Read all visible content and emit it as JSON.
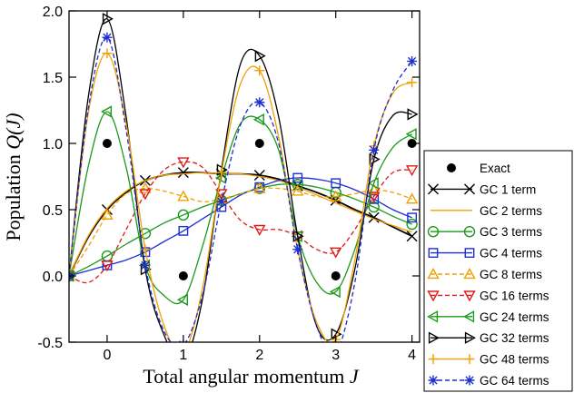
{
  "chart_data": {
    "type": "line",
    "xlabel_main": "Total angular momentum",
    "xlabel_var": "J",
    "ylabel_main": "Population",
    "ylabel_var": "Q(J)",
    "xlim": [
      -0.5,
      4.1
    ],
    "ylim": [
      -0.5,
      2.0
    ],
    "xticks": [
      0,
      1,
      2,
      3,
      4
    ],
    "xtick_labels": [
      "0",
      "1",
      "2",
      "3",
      "4"
    ],
    "yticks": [
      -0.5,
      0.0,
      0.5,
      1.0,
      1.5,
      2.0
    ],
    "ytick_labels": [
      "-0.5",
      "0.0",
      "0.5",
      "1.0",
      "1.5",
      "2.0"
    ],
    "grid": false,
    "legend_position": "lower-right, outside plot",
    "exact": {
      "name": "Exact",
      "color": "#000000",
      "marker": "filled-circle",
      "x": [
        0,
        1,
        2,
        3,
        4
      ],
      "y": [
        1.0,
        0.0,
        1.0,
        0.0,
        1.0
      ]
    },
    "x": [
      -0.5,
      -0.25,
      0.0,
      0.25,
      0.5,
      0.75,
      1.0,
      1.25,
      1.5,
      1.75,
      2.0,
      2.25,
      2.5,
      2.75,
      3.0,
      3.25,
      3.5,
      3.75,
      4.0
    ],
    "series": [
      {
        "name": "GC 1 term",
        "color": "#000000",
        "dash": "solid",
        "marker": "x",
        "y": [
          0.0,
          0.29,
          0.5,
          0.63,
          0.72,
          0.76,
          0.78,
          0.78,
          0.77,
          0.77,
          0.76,
          0.73,
          0.68,
          0.63,
          0.57,
          0.5,
          0.44,
          0.37,
          0.3
        ]
      },
      {
        "name": "GC 2 terms",
        "color": "#f0a000",
        "dash": "solid",
        "marker": "none",
        "y": [
          0.0,
          0.3,
          0.51,
          0.64,
          0.72,
          0.76,
          0.77,
          0.78,
          0.77,
          0.77,
          0.75,
          0.72,
          0.67,
          0.61,
          0.55,
          0.49,
          0.43,
          0.38,
          0.33
        ]
      },
      {
        "name": "GC 3 terms",
        "color": "#1a9a1a",
        "dash": "solid",
        "marker": "open-circle",
        "y": [
          0.0,
          0.07,
          0.15,
          0.24,
          0.32,
          0.4,
          0.46,
          0.52,
          0.57,
          0.62,
          0.66,
          0.69,
          0.69,
          0.67,
          0.63,
          0.58,
          0.52,
          0.45,
          0.39
        ]
      },
      {
        "name": "GC 4 terms",
        "color": "#1c2fd0",
        "dash": "solid",
        "marker": "open-square",
        "y": [
          0.0,
          0.04,
          0.08,
          0.12,
          0.18,
          0.26,
          0.34,
          0.43,
          0.52,
          0.61,
          0.67,
          0.72,
          0.74,
          0.73,
          0.7,
          0.65,
          0.58,
          0.5,
          0.44
        ]
      },
      {
        "name": "GC 8 terms",
        "color": "#f0a000",
        "dash": "dashed",
        "marker": "open-triangle-up",
        "y": [
          0.0,
          0.22,
          0.46,
          0.62,
          0.66,
          0.64,
          0.6,
          0.56,
          0.58,
          0.62,
          0.66,
          0.66,
          0.64,
          0.6,
          0.6,
          0.62,
          0.65,
          0.63,
          0.58
        ]
      },
      {
        "name": "GC 16 terms",
        "color": "#e01818",
        "dash": "dashed",
        "marker": "open-triangle-down",
        "y": [
          0.0,
          -0.05,
          0.08,
          0.35,
          0.62,
          0.8,
          0.86,
          0.82,
          0.62,
          0.42,
          0.35,
          0.35,
          0.3,
          0.2,
          0.18,
          0.35,
          0.6,
          0.78,
          0.8
        ]
      },
      {
        "name": "GC 24 terms",
        "color": "#1a9a1a",
        "dash": "solid",
        "marker": "open-triangle-left",
        "y": [
          0.0,
          0.82,
          1.24,
          0.82,
          0.08,
          -0.15,
          -0.18,
          0.22,
          0.74,
          1.15,
          1.18,
          0.95,
          0.3,
          -0.05,
          -0.12,
          0.2,
          0.7,
          0.97,
          1.07
        ]
      },
      {
        "name": "GC 32 terms",
        "color": "#000000",
        "dash": "solid",
        "marker": "open-triangle-right",
        "y": [
          0.0,
          1.34,
          1.94,
          1.2,
          0.05,
          -0.45,
          -0.65,
          -0.18,
          0.8,
          1.6,
          1.66,
          1.2,
          0.3,
          -0.38,
          -0.44,
          0.05,
          0.88,
          1.21,
          1.22
        ]
      },
      {
        "name": "GC 48 terms",
        "color": "#f0a000",
        "dash": "solid",
        "marker": "plus",
        "y": [
          0.0,
          1.22,
          1.68,
          1.15,
          0.2,
          -0.38,
          -0.58,
          -0.1,
          0.78,
          1.45,
          1.55,
          1.05,
          0.2,
          -0.35,
          -0.48,
          0.12,
          0.98,
          1.38,
          1.46
        ]
      },
      {
        "name": "GC 64 terms",
        "color": "#1c2fd0",
        "dash": "dashed",
        "marker": "asterisk",
        "y": [
          0.0,
          1.25,
          1.8,
          1.1,
          0.08,
          -0.42,
          -0.52,
          -0.15,
          0.56,
          1.14,
          1.31,
          1.0,
          0.2,
          -0.38,
          -0.58,
          -0.05,
          0.95,
          1.4,
          1.62
        ]
      }
    ]
  }
}
